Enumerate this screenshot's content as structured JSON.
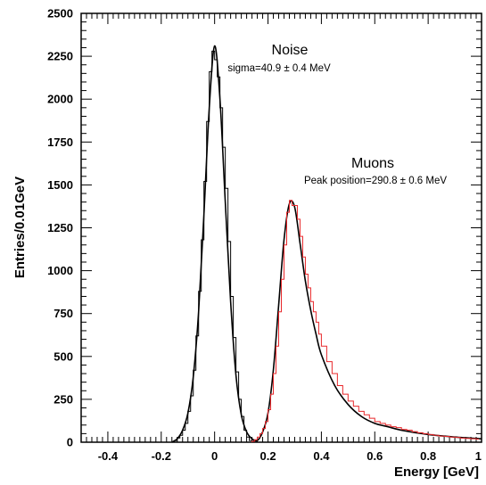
{
  "chart_data": {
    "type": "line",
    "xlabel": "Energy [GeV]",
    "ylabel": "Entries/0.01GeV",
    "xlim": [
      -0.5,
      1.0
    ],
    "ylim": [
      0,
      2500
    ],
    "x_ticks": [
      "-0.4",
      "-0.2",
      "0",
      "0.2",
      "0.4",
      "0.6",
      "0.8",
      "1"
    ],
    "y_ticks": [
      "0",
      "250",
      "500",
      "750",
      "1000",
      "1250",
      "1500",
      "1750",
      "2000",
      "2250",
      "2500"
    ],
    "grid": false,
    "legend": "none",
    "annotations": [
      {
        "title": "Noise",
        "subtitle": "sigma=40.9 ± 0.4 MeV"
      },
      {
        "title": "Muons",
        "subtitle": "Peak position=290.8 ± 0.6 MeV"
      }
    ],
    "series": [
      {
        "color": "#000000",
        "style": "step",
        "x": [
          -0.16,
          -0.15,
          -0.14,
          -0.13,
          -0.12,
          -0.11,
          -0.1,
          -0.09,
          -0.08,
          -0.07,
          -0.06,
          -0.05,
          -0.04,
          -0.03,
          -0.02,
          -0.01,
          0.0,
          0.01,
          0.02,
          0.03,
          0.04,
          0.05,
          0.06,
          0.07,
          0.08,
          0.09,
          0.1,
          0.11,
          0.12,
          0.13,
          0.14,
          0.15
        ],
        "values": [
          0,
          10,
          25,
          40,
          70,
          110,
          180,
          270,
          420,
          620,
          880,
          1180,
          1520,
          1870,
          2160,
          2280,
          2230,
          2130,
          1950,
          1720,
          1480,
          1170,
          850,
          610,
          410,
          250,
          150,
          70,
          30,
          10,
          0,
          0
        ]
      },
      {
        "color": "#000000",
        "style": "smooth",
        "x": [
          -0.16,
          -0.14,
          -0.12,
          -0.1,
          -0.08,
          -0.06,
          -0.04,
          -0.02,
          0.0,
          0.02,
          0.04,
          0.06,
          0.08,
          0.1,
          0.12,
          0.14,
          0.16,
          0.18,
          0.2,
          0.22,
          0.24,
          0.26,
          0.28,
          0.3,
          0.32,
          0.34,
          0.36,
          0.38,
          0.4,
          0.45,
          0.5,
          0.55,
          0.6,
          0.65,
          0.7,
          0.8,
          0.9,
          1.0
        ],
        "values": [
          0,
          20,
          70,
          170,
          380,
          760,
          1330,
          1950,
          2310,
          2000,
          1400,
          820,
          390,
          160,
          60,
          20,
          10,
          60,
          170,
          420,
          800,
          1180,
          1390,
          1370,
          1160,
          940,
          770,
          630,
          510,
          330,
          220,
          150,
          110,
          90,
          70,
          45,
          30,
          20
        ]
      },
      {
        "color": "#e8282b",
        "style": "step",
        "x": [
          0.14,
          0.15,
          0.16,
          0.17,
          0.18,
          0.19,
          0.2,
          0.21,
          0.22,
          0.23,
          0.24,
          0.25,
          0.26,
          0.27,
          0.28,
          0.29,
          0.3,
          0.31,
          0.32,
          0.33,
          0.34,
          0.35,
          0.36,
          0.37,
          0.38,
          0.39,
          0.4,
          0.42,
          0.44,
          0.46,
          0.48,
          0.5,
          0.52,
          0.54,
          0.56,
          0.58,
          0.6,
          0.62,
          0.64,
          0.66,
          0.68,
          0.7,
          0.72,
          0.74,
          0.76,
          0.78,
          0.8,
          0.82,
          0.84,
          0.86,
          0.88,
          0.9,
          0.92,
          0.94,
          0.96,
          0.98
        ],
        "values": [
          5,
          15,
          30,
          50,
          80,
          120,
          190,
          280,
          400,
          560,
          760,
          950,
          1150,
          1340,
          1410,
          1380,
          1380,
          1300,
          1200,
          1080,
          980,
          900,
          820,
          760,
          700,
          630,
          560,
          470,
          400,
          330,
          280,
          240,
          210,
          180,
          160,
          140,
          120,
          110,
          100,
          90,
          85,
          75,
          70,
          62,
          55,
          50,
          45,
          40,
          36,
          34,
          30,
          28,
          24,
          22,
          20,
          18
        ]
      }
    ]
  }
}
